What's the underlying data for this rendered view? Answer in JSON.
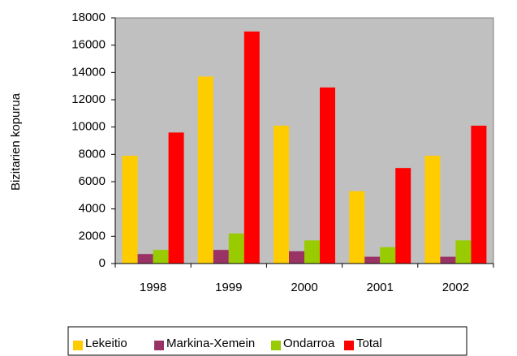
{
  "chart_data": {
    "type": "bar",
    "y_label": "Bizitarien kopurua",
    "categories": [
      "1998",
      "1999",
      "2000",
      "2001",
      "2002"
    ],
    "series": [
      {
        "name": "Lekeitio",
        "color": "#ffcc00",
        "values": [
          7900,
          13700,
          10100,
          5300,
          7900
        ]
      },
      {
        "name": "Markina-Xemein",
        "color": "#993366",
        "values": [
          700,
          1000,
          900,
          500,
          500
        ]
      },
      {
        "name": "Ondarroa",
        "color": "#99cc00",
        "values": [
          1000,
          2200,
          1700,
          1200,
          1700
        ]
      },
      {
        "name": "Total",
        "color": "#ff0000",
        "values": [
          9600,
          17000,
          12900,
          7000,
          10100
        ]
      }
    ],
    "ylim": [
      0,
      18000
    ],
    "yticks": [
      0,
      2000,
      4000,
      6000,
      8000,
      10000,
      12000,
      14000,
      16000,
      18000
    ],
    "grid": false,
    "legend": "bottom",
    "plot_background": "#c0c0c0"
  }
}
